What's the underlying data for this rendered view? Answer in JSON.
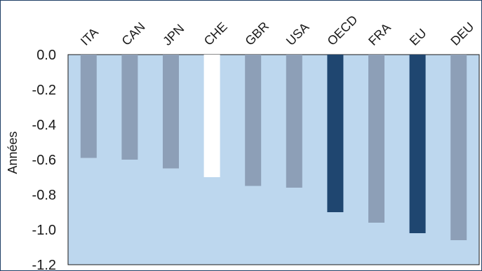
{
  "chart_data": {
    "type": "bar",
    "title": "",
    "ylabel": "Années",
    "xlabel": "",
    "categories": [
      "ITA",
      "CAN",
      "JPN",
      "CHE",
      "GBR",
      "USA",
      "OECD",
      "FRA",
      "EU",
      "DEU"
    ],
    "values": [
      -0.59,
      -0.6,
      -0.65,
      -0.7,
      -0.75,
      -0.76,
      -0.9,
      -0.96,
      -1.02,
      -1.06
    ],
    "ylim": [
      -1.2,
      0.0
    ],
    "yticks": [
      "0.0",
      "-0.2",
      "-0.4",
      "-0.6",
      "-0.8",
      "-1.0",
      "-1.2"
    ],
    "ytick_values": [
      0.0,
      -0.2,
      -0.4,
      -0.6,
      -0.8,
      -1.0,
      -1.2
    ],
    "grid": false,
    "legend": "none",
    "colors": {
      "plot_background": "#bdd7ee",
      "default_bar": "#8d9fb7",
      "highlight_white": "#ffffff",
      "aggregate_bar": "#1f4670",
      "axis": "#1a1a1a"
    },
    "bar_styles": [
      "default",
      "default",
      "default",
      "white",
      "default",
      "default",
      "aggregate",
      "default",
      "aggregate",
      "default"
    ]
  }
}
